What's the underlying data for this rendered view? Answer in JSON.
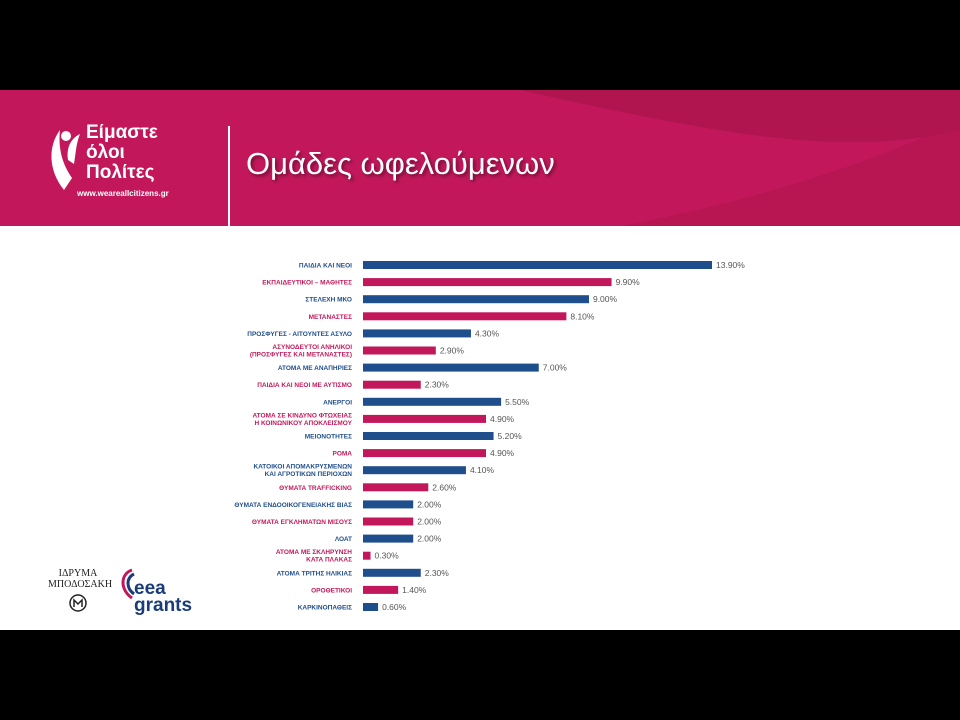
{
  "header": {
    "title": "Ομάδες ωφελούμενων",
    "logo_lines": [
      "Είμαστε",
      "όλοι",
      "Πολίτες"
    ],
    "logo_url": "www.weareallcitizens.gr"
  },
  "footer": {
    "idryma_lines": [
      "ΙΔΡΥΜΑ",
      "ΜΠΟΔΟΣΑΚΗ"
    ],
    "eea_lines": [
      "eea",
      "grants"
    ]
  },
  "colors": {
    "blue": "#1f4e8c",
    "magenta": "#c2185b",
    "banner": "#c2185b"
  },
  "chart_data": {
    "type": "bar",
    "orientation": "horizontal",
    "categories": [
      [
        "ΠΑΙΔΙΑ ΚΑΙ ΝΕΟΙ"
      ],
      [
        "ΕΚΠΑΙΔΕΥΤΙΚΟΙ – ΜΑΘΗΤΕΣ"
      ],
      [
        "ΣΤΕΛΕΧΗ ΜΚΟ"
      ],
      [
        "ΜΕΤΑΝΑΣΤΕΣ"
      ],
      [
        "ΠΡΟΣΦΥΓΕΣ - ΑΙΤΟΥΝΤΕΣ ΑΣΥΛΟ"
      ],
      [
        "ΑΣΥΝΟΔΕΥΤΟΙ ΑΝΗΛΙΚΟΙ",
        "(ΠΡΟΣΦΥΓΕΣ ΚΑΙ ΜΕΤΑΝΑΣΤΕΣ)"
      ],
      [
        "ΑΤΟΜΑ ΜΕ ΑΝΑΠΗΡΙΕΣ"
      ],
      [
        "ΠΑΙΔΙΑ ΚΑΙ ΝΕΟΙ ΜΕ ΑΥΤΙΣΜΟ"
      ],
      [
        "ΑΝΕΡΓΟΙ"
      ],
      [
        "ΑΤΟΜΑ ΣΕ ΚΙΝΔΥΝΟ ΦΤΩΧΕΙΑΣ",
        "Η ΚΟΙΝΩΝΙΚΟΥ ΑΠΟΚΛΕΙΣΜΟΥ"
      ],
      [
        "ΜΕΙΟΝΟΤΗΤΕΣ"
      ],
      [
        "ΡΟΜΑ"
      ],
      [
        "ΚΑΤΟΙΚΟΙ ΑΠΟΜΑΚΡΥΣΜΕΝΩΝ",
        "ΚΑΙ ΑΓΡΟΤΙΚΩΝ ΠΕΡΙΟΧΩΝ"
      ],
      [
        "ΘΥΜΑΤΑ TRAFFICKING"
      ],
      [
        "ΘΥΜΑΤΑ ΕΝΔΟΟΙΚΟΓΕΝΕΙΑΚΗΣ ΒΙΑΣ"
      ],
      [
        "ΘΥΜΑΤΑ ΕΓΚΛΗΜΑΤΩΝ ΜΙΣΟΥΣ"
      ],
      [
        "ΛΟΑΤ"
      ],
      [
        "ΑΤΟΜΑ ΜΕ ΣΚΛΗΡΥΝΣΗ",
        "ΚΑΤΑ ΠΛΑΚΑΣ"
      ],
      [
        "ΑΤΟΜΑ ΤΡΙΤΗΣ ΗΛΙΚΙΑΣ"
      ],
      [
        "ΟΡΟΘΕΤΙΚΟΙ"
      ],
      [
        "ΚΑΡΚΙΝΟΠΑΘΕΙΣ"
      ]
    ],
    "values": [
      13.9,
      9.9,
      9.0,
      8.1,
      4.3,
      2.9,
      7.0,
      2.3,
      5.5,
      4.9,
      5.2,
      4.9,
      4.1,
      2.6,
      2.0,
      2.0,
      2.0,
      0.3,
      2.3,
      1.4,
      0.6
    ],
    "labels": [
      "13.90%",
      "9.90%",
      "9.00%",
      "8.10%",
      "4.30%",
      "2.90%",
      "7.00%",
      "2.30%",
      "5.50%",
      "4.90%",
      "5.20%",
      "4.90%",
      "4.10%",
      "2.60%",
      "2.00%",
      "2.00%",
      "2.00%",
      "0.30%",
      "2.30%",
      "1.40%",
      "0.60%"
    ],
    "bar_colors": [
      "blue",
      "magenta",
      "blue",
      "magenta",
      "blue",
      "magenta",
      "blue",
      "magenta",
      "blue",
      "magenta",
      "blue",
      "magenta",
      "blue",
      "magenta",
      "blue",
      "magenta",
      "blue",
      "magenta",
      "blue",
      "magenta",
      "blue"
    ],
    "xlim": [
      0,
      14
    ]
  }
}
